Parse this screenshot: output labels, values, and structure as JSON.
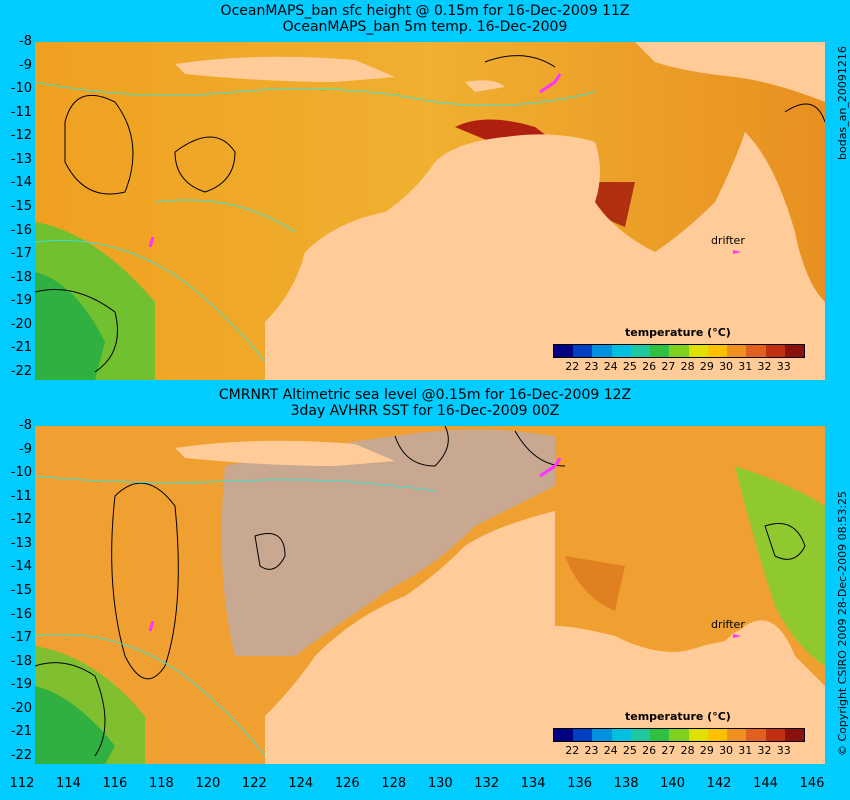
{
  "panel1": {
    "title_line1": "OceanMAPS_ban sfc height @ 0.15m for 16-Dec-2009 11Z",
    "title_line2": "OceanMAPS_ban 5m temp. 16-Dec-2009",
    "side_label": "bodas_an_20091216",
    "drifter_label": "drifter",
    "colorbar_title": "temperature (°C)"
  },
  "panel2": {
    "title_line1": "CMRNRT Altimetric sea level  @0.15m  for 16-Dec-2009 12Z",
    "title_line2": "3day AVHRR SST for 16-Dec-2009 00Z",
    "side_label": "© Copyright CSIRO 2009   28-Dec-2009 08:53:25",
    "drifter_label": "drifter",
    "colorbar_title": "temperature (°C)"
  },
  "colorbar_ticks": [
    "22",
    "23",
    "24",
    "25",
    "26",
    "27",
    "28",
    "29",
    "30",
    "31",
    "32",
    "33"
  ],
  "colorbar_colors": [
    "#000080",
    "#0040c0",
    "#0090e0",
    "#00c0e0",
    "#20c8a0",
    "#30c040",
    "#80d020",
    "#e0e000",
    "#ffc000",
    "#f09020",
    "#e06020",
    "#c03010",
    "#8b1010"
  ],
  "y_ticks": [
    "-8",
    "-9",
    "-10",
    "-11",
    "-12",
    "-13",
    "-14",
    "-15",
    "-16",
    "-17",
    "-18",
    "-19",
    "-20",
    "-21",
    "-22"
  ],
  "x_ticks": [
    "112",
    "114",
    "116",
    "118",
    "120",
    "122",
    "124",
    "126",
    "128",
    "130",
    "132",
    "134",
    "136",
    "138",
    "140",
    "142",
    "144",
    "146"
  ],
  "colors": {
    "background": "#00ccff",
    "land": "#ffcc99",
    "no_data": "#c8a890",
    "drifter": "#ff33ff",
    "contour": "#40e0d0"
  }
}
